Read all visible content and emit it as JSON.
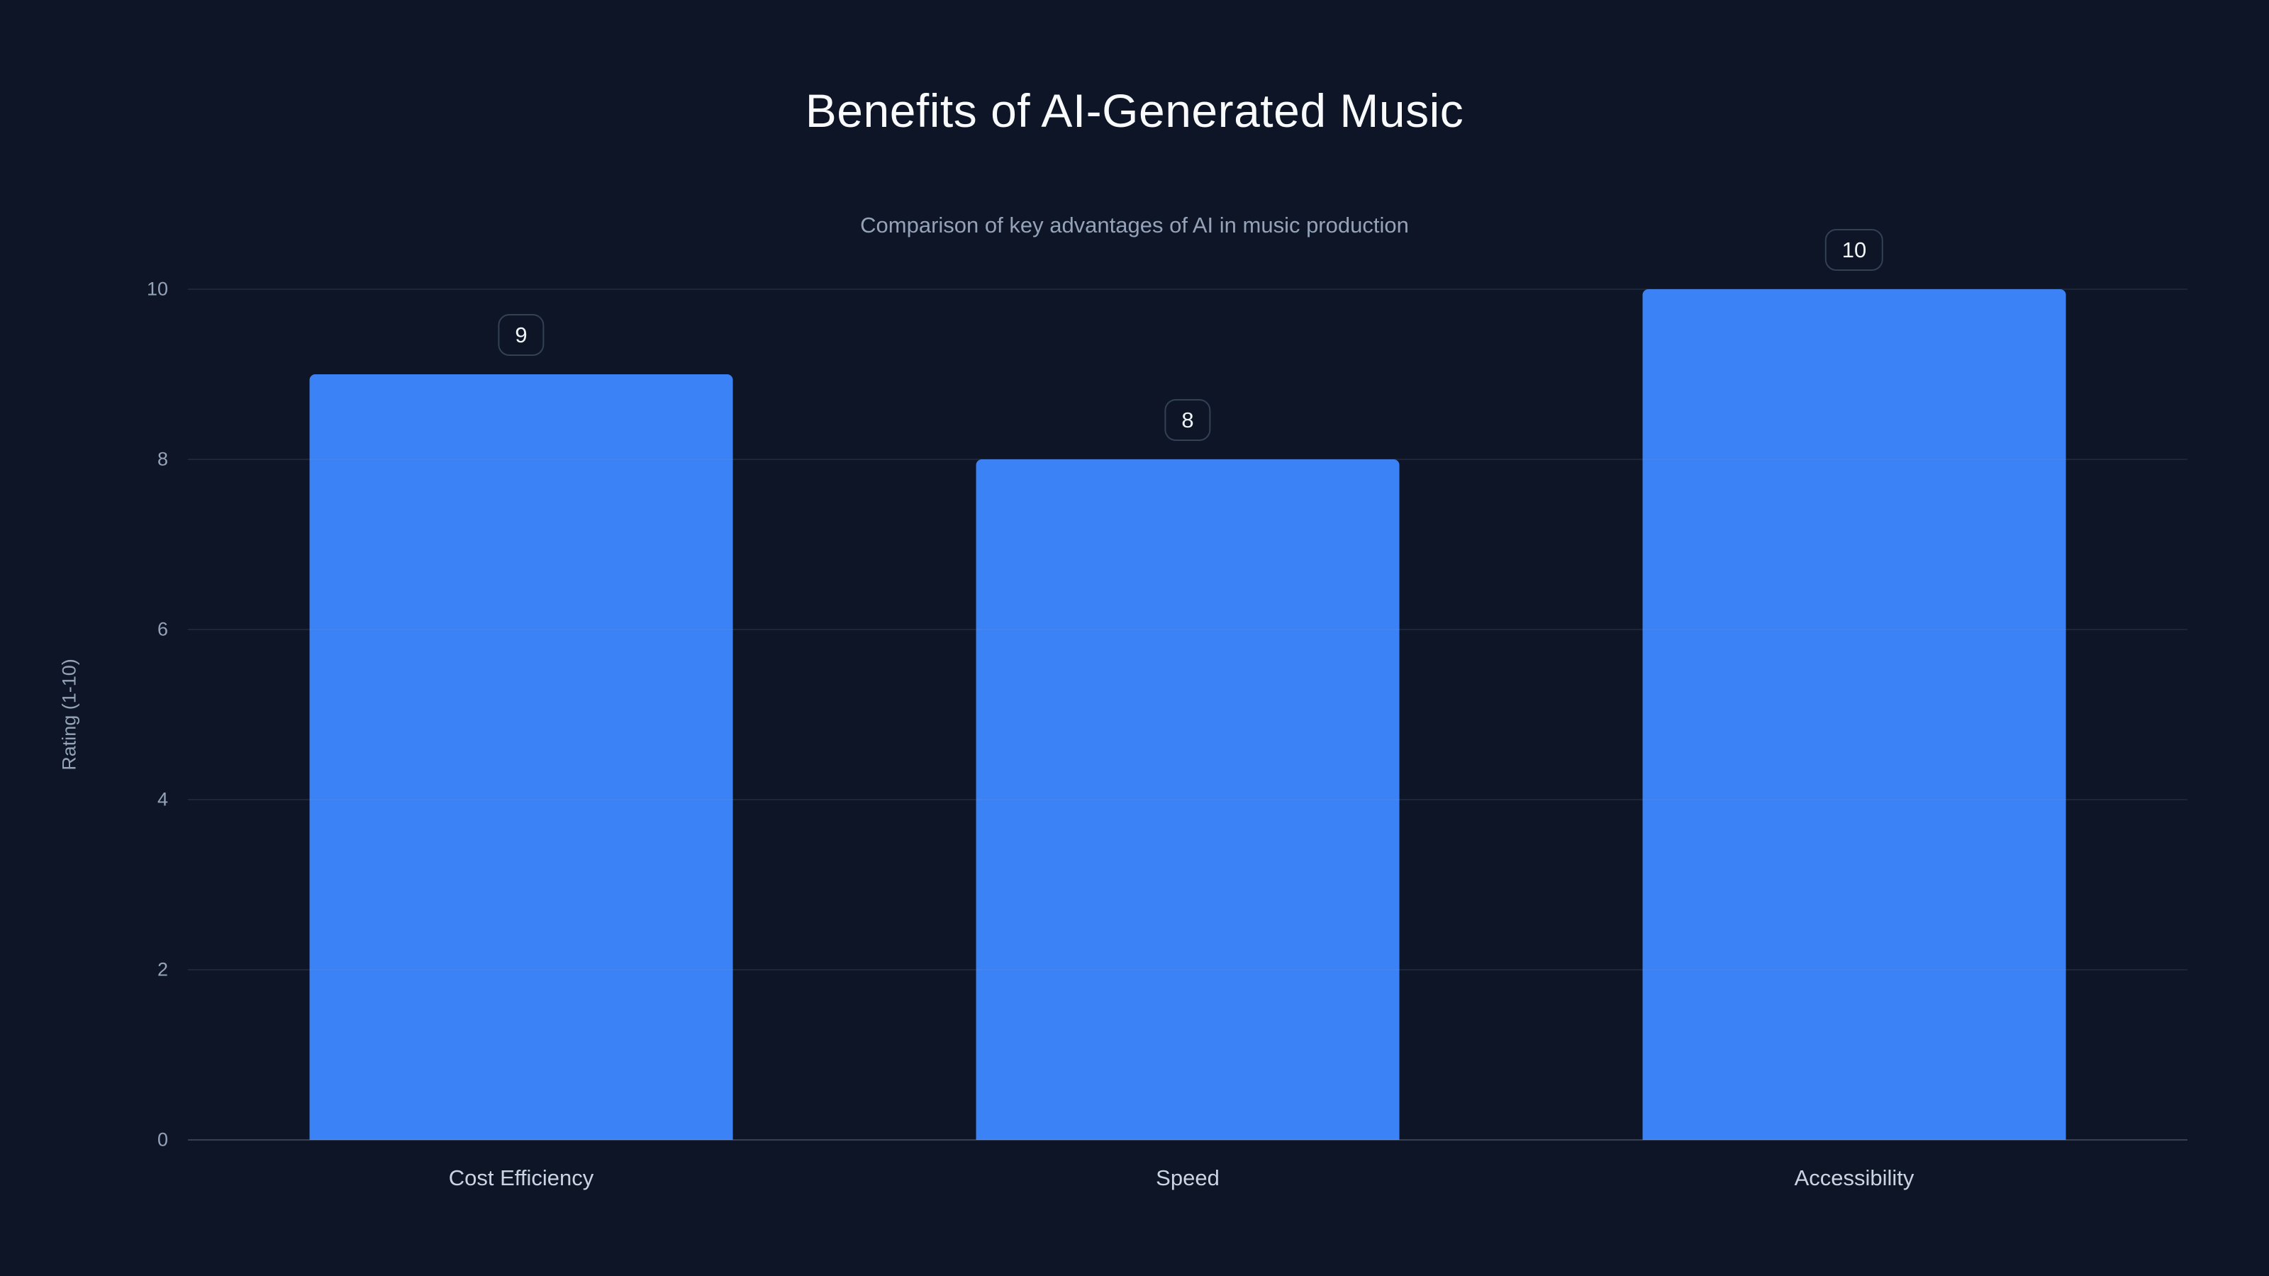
{
  "chart_data": {
    "type": "bar",
    "title": "Benefits of AI-Generated Music",
    "subtitle": "Comparison of key advantages of AI in music production",
    "categories": [
      "Cost Efficiency",
      "Speed",
      "Accessibility"
    ],
    "values": [
      9,
      8,
      10
    ],
    "value_labels": [
      "9",
      "8",
      "10"
    ],
    "xlabel": "",
    "ylabel": "Rating (1-10)",
    "ylim": [
      0,
      10
    ],
    "yticks": [
      0,
      2,
      4,
      6,
      8,
      10
    ],
    "grid": true,
    "legend": false,
    "colors": {
      "background": "#0d1527",
      "bar": "#3b82f6",
      "grid": "rgba(148,163,184,0.12)",
      "axis_line": "rgba(148,163,184,0.30)",
      "title_text": "#f8fafc",
      "subtitle_text": "#94a3b8",
      "tick_text": "#94a3b8",
      "category_text": "#cbd5e1",
      "badge_border": "#334155",
      "badge_text": "#f1f5f9"
    }
  }
}
